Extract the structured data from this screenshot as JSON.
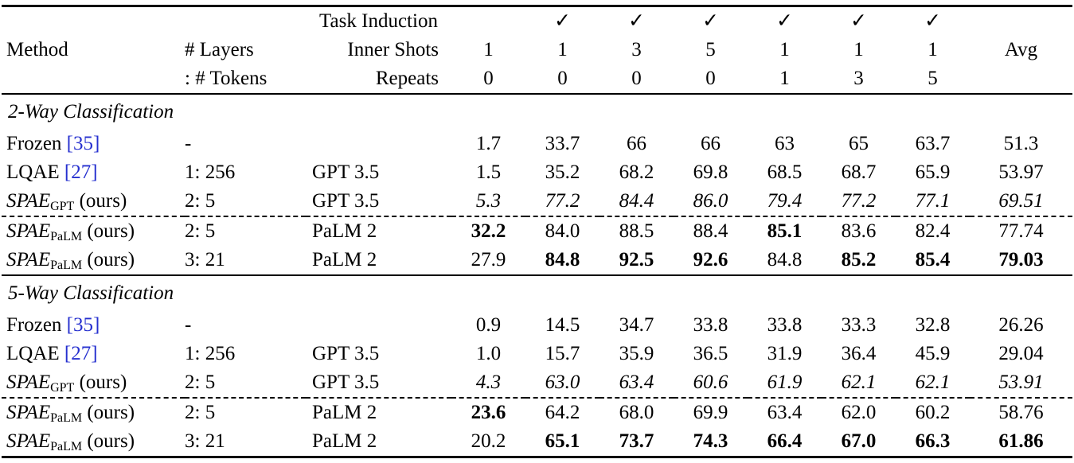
{
  "colors": {
    "citation_link": "#2630cf",
    "text": "#000000",
    "background": "#ffffff"
  },
  "header": {
    "task_induction": "Task Induction",
    "method": "Method",
    "layers": "# Layers",
    "tokens": ": # Tokens",
    "inner_shots": "Inner Shots",
    "repeats": "Repeats",
    "avg": "Avg",
    "check": "✓",
    "inner_shots_values": [
      "1",
      "1",
      "3",
      "5",
      "1",
      "1",
      "1"
    ],
    "repeats_values": [
      "0",
      "0",
      "0",
      "0",
      "1",
      "3",
      "5"
    ]
  },
  "table": {
    "sections": [
      {
        "title": "2-Way Classification",
        "rows": [
          {
            "method": {
              "name": "Frozen",
              "italic_name": false,
              "sub": "",
              "cite": "[35]",
              "ours": ""
            },
            "layers": "-",
            "model": "",
            "italic_values": false,
            "dashed_top": false,
            "values": [
              "1.7",
              "33.7",
              "66",
              "66",
              "63",
              "65",
              "63.7",
              "51.3"
            ],
            "bold": [
              false,
              false,
              false,
              false,
              false,
              false,
              false,
              false
            ]
          },
          {
            "method": {
              "name": "LQAE",
              "italic_name": false,
              "sub": "",
              "cite": "[27]",
              "ours": ""
            },
            "layers": "1: 256",
            "model": "GPT 3.5",
            "italic_values": false,
            "dashed_top": false,
            "values": [
              "1.5",
              "35.2",
              "68.2",
              "69.8",
              "68.5",
              "68.7",
              "65.9",
              "53.97"
            ],
            "bold": [
              false,
              false,
              false,
              false,
              false,
              false,
              false,
              false
            ]
          },
          {
            "method": {
              "name": "SPAE",
              "italic_name": true,
              "sub": "GPT",
              "cite": "",
              "ours": " (ours)"
            },
            "layers": "2: 5",
            "model": "GPT 3.5",
            "italic_values": true,
            "dashed_top": false,
            "values": [
              "5.3",
              "77.2",
              "84.4",
              "86.0",
              "79.4",
              "77.2",
              "77.1",
              "69.51"
            ],
            "bold": [
              false,
              false,
              false,
              false,
              false,
              false,
              false,
              false
            ]
          },
          {
            "method": {
              "name": "SPAE",
              "italic_name": true,
              "sub": "PaLM",
              "cite": "",
              "ours": " (ours)"
            },
            "layers": "2: 5",
            "model": "PaLM 2",
            "italic_values": false,
            "dashed_top": true,
            "values": [
              "32.2",
              "84.0",
              "88.5",
              "88.4",
              "85.1",
              "83.6",
              "82.4",
              "77.74"
            ],
            "bold": [
              true,
              false,
              false,
              false,
              true,
              false,
              false,
              false
            ]
          },
          {
            "method": {
              "name": "SPAE",
              "italic_name": true,
              "sub": "PaLM",
              "cite": "",
              "ours": " (ours)"
            },
            "layers": "3: 21",
            "model": "PaLM 2",
            "italic_values": false,
            "dashed_top": false,
            "values": [
              "27.9",
              "84.8",
              "92.5",
              "92.6",
              "84.8",
              "85.2",
              "85.4",
              "79.03"
            ],
            "bold": [
              false,
              true,
              true,
              true,
              false,
              true,
              true,
              true
            ]
          }
        ]
      },
      {
        "title": "5-Way Classification",
        "rows": [
          {
            "method": {
              "name": "Frozen",
              "italic_name": false,
              "sub": "",
              "cite": "[35]",
              "ours": ""
            },
            "layers": "-",
            "model": "",
            "italic_values": false,
            "dashed_top": false,
            "values": [
              "0.9",
              "14.5",
              "34.7",
              "33.8",
              "33.8",
              "33.3",
              "32.8",
              "26.26"
            ],
            "bold": [
              false,
              false,
              false,
              false,
              false,
              false,
              false,
              false
            ]
          },
          {
            "method": {
              "name": "LQAE",
              "italic_name": false,
              "sub": "",
              "cite": "[27]",
              "ours": ""
            },
            "layers": "1: 256",
            "model": "GPT 3.5",
            "italic_values": false,
            "dashed_top": false,
            "values": [
              "1.0",
              "15.7",
              "35.9",
              "36.5",
              "31.9",
              "36.4",
              "45.9",
              "29.04"
            ],
            "bold": [
              false,
              false,
              false,
              false,
              false,
              false,
              false,
              false
            ]
          },
          {
            "method": {
              "name": "SPAE",
              "italic_name": true,
              "sub": "GPT",
              "cite": "",
              "ours": " (ours)"
            },
            "layers": "2: 5",
            "model": "GPT 3.5",
            "italic_values": true,
            "dashed_top": false,
            "values": [
              "4.3",
              "63.0",
              "63.4",
              "60.6",
              "61.9",
              "62.1",
              "62.1",
              "53.91"
            ],
            "bold": [
              false,
              false,
              false,
              false,
              false,
              false,
              false,
              false
            ]
          },
          {
            "method": {
              "name": "SPAE",
              "italic_name": true,
              "sub": "PaLM",
              "cite": "",
              "ours": " (ours)"
            },
            "layers": "2: 5",
            "model": "PaLM 2",
            "italic_values": false,
            "dashed_top": true,
            "values": [
              "23.6",
              "64.2",
              "68.0",
              "69.9",
              "63.4",
              "62.0",
              "60.2",
              "58.76"
            ],
            "bold": [
              true,
              false,
              false,
              false,
              false,
              false,
              false,
              false
            ]
          },
          {
            "method": {
              "name": "SPAE",
              "italic_name": true,
              "sub": "PaLM",
              "cite": "",
              "ours": " (ours)"
            },
            "layers": "3: 21",
            "model": "PaLM 2",
            "italic_values": false,
            "dashed_top": false,
            "values": [
              "20.2",
              "65.1",
              "73.7",
              "74.3",
              "66.4",
              "67.0",
              "66.3",
              "61.86"
            ],
            "bold": [
              false,
              true,
              true,
              true,
              true,
              true,
              true,
              true
            ]
          }
        ]
      }
    ]
  }
}
